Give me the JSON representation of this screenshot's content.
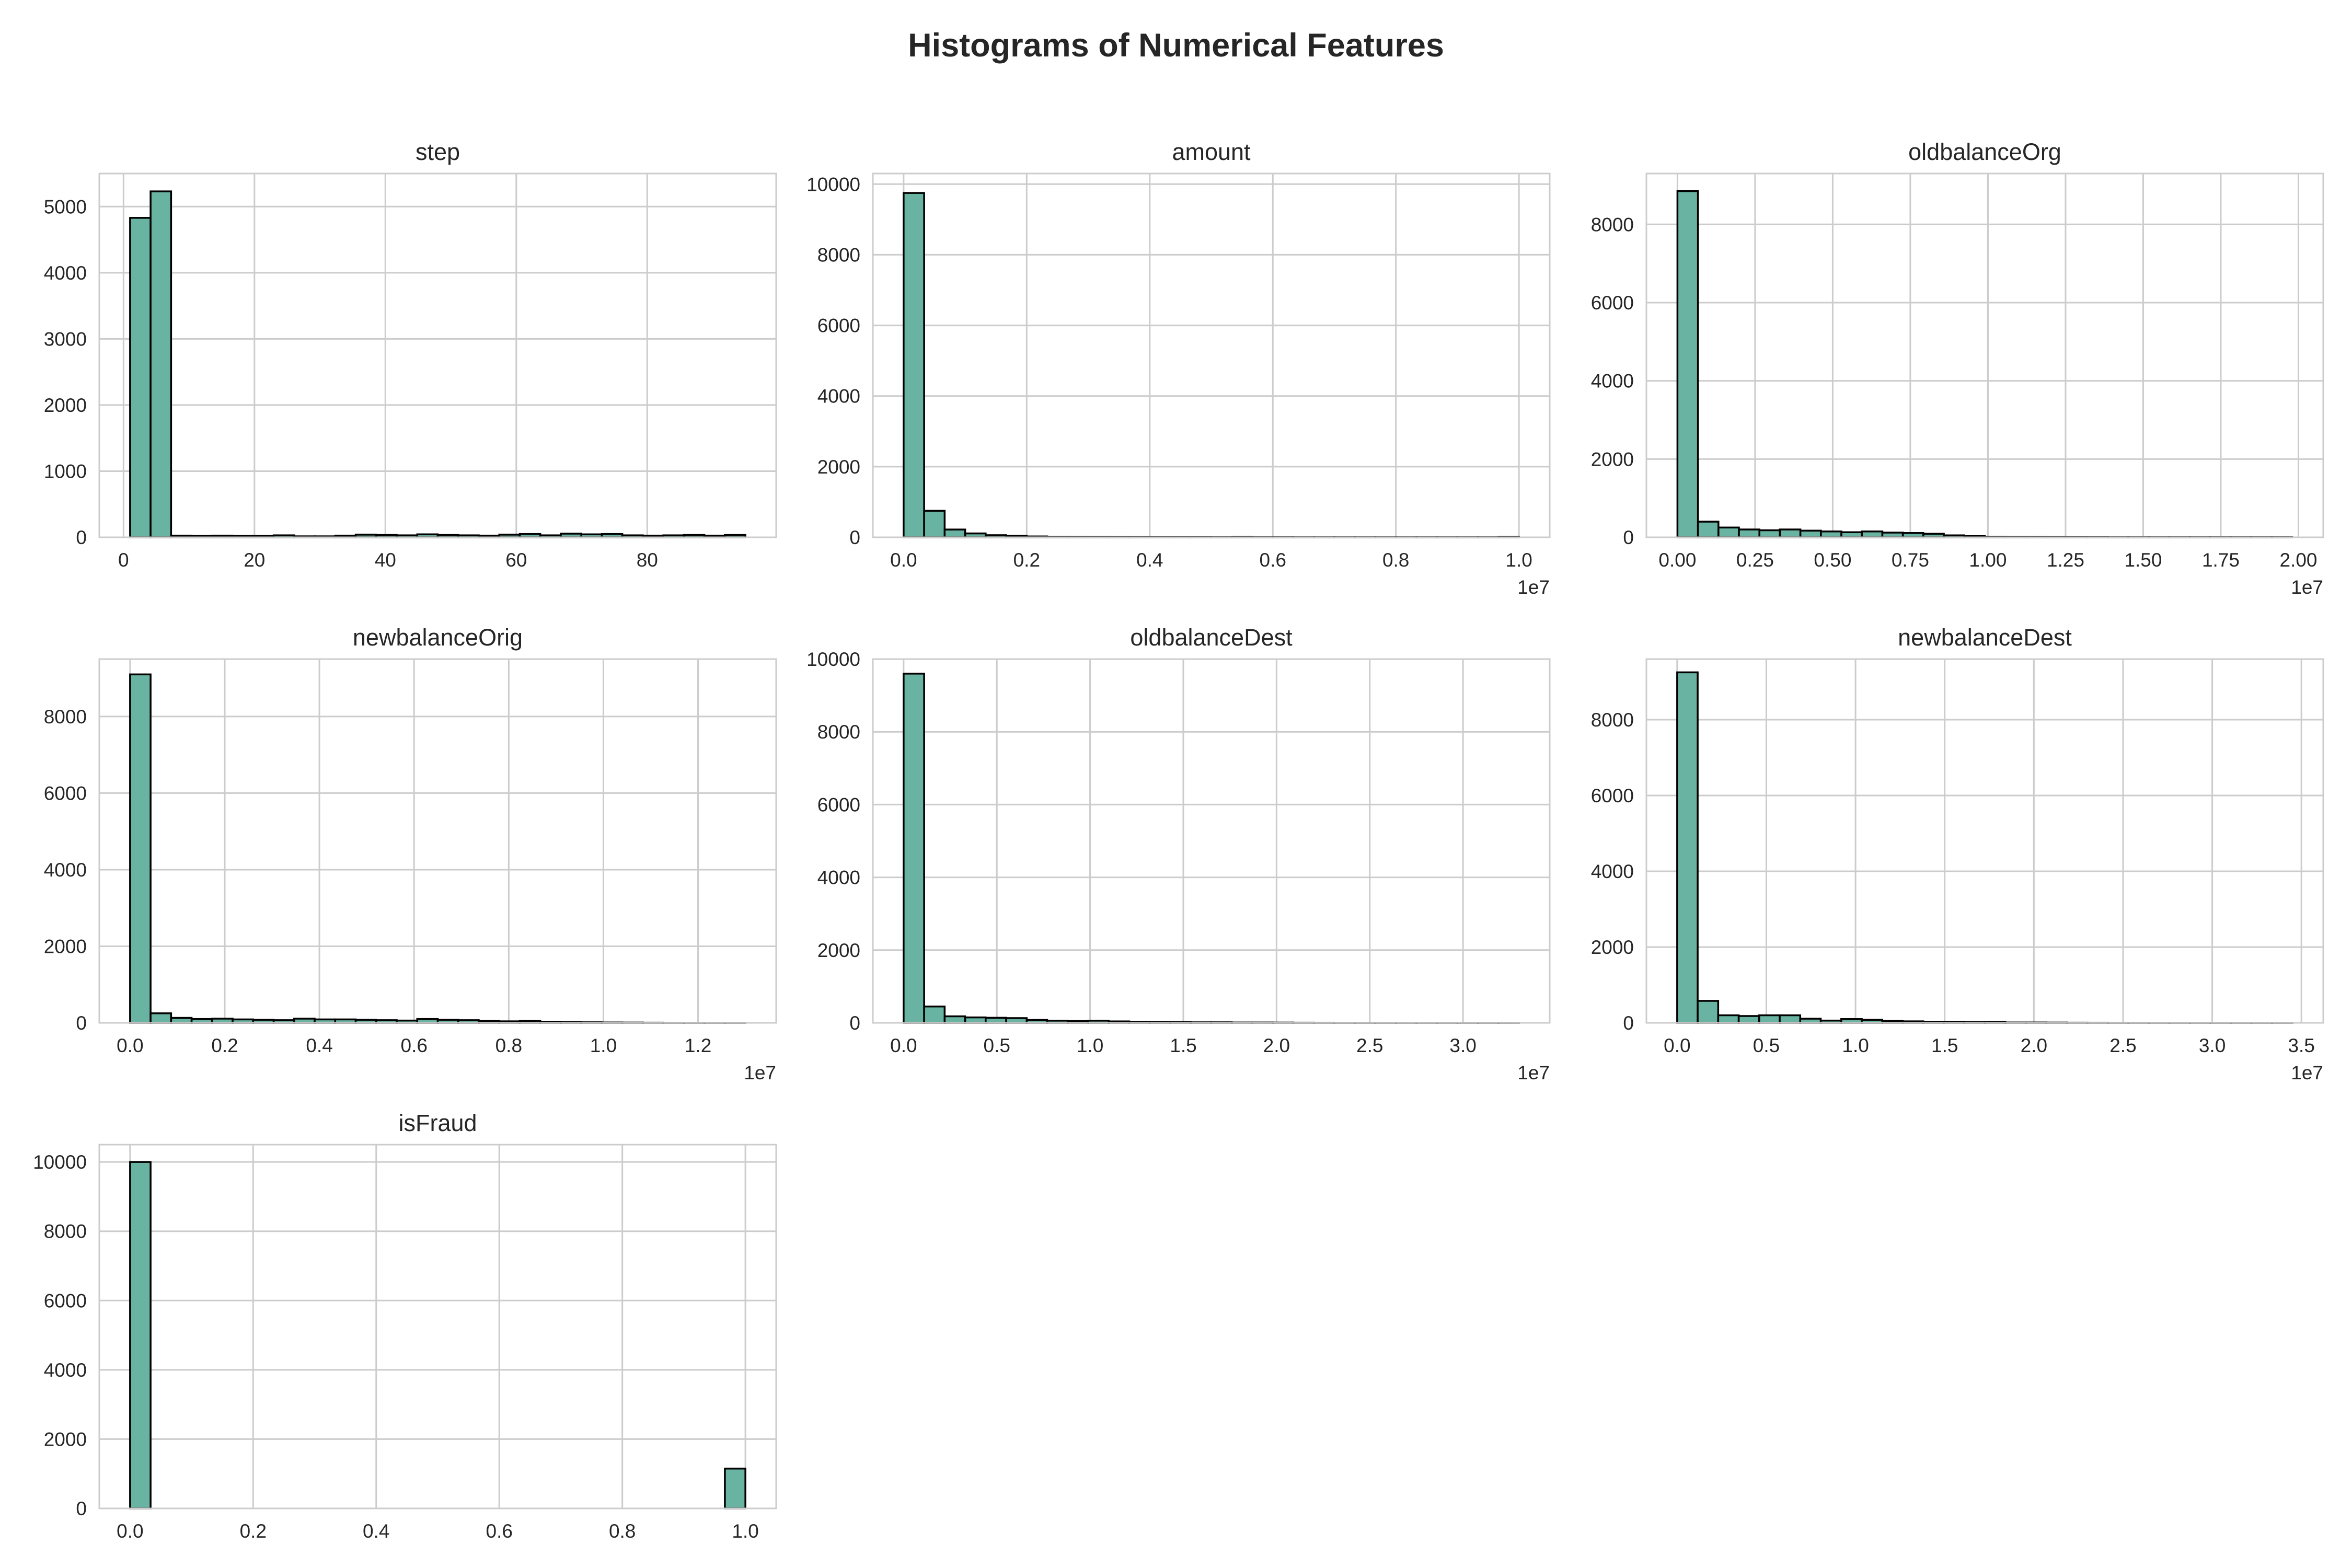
{
  "figure": {
    "title": "Histograms of Numerical Features",
    "bar_color": "#69b3a2",
    "edge_color": "#000000",
    "grid": true,
    "bins_per_panel": 30
  },
  "chart_data": [
    {
      "type": "bar",
      "title": "step",
      "xlabel": "",
      "ylabel": "",
      "bin_range": [
        1,
        95
      ],
      "xlim": [
        -3.7,
        99.7
      ],
      "ylim": [
        0,
        5500
      ],
      "xticks": [
        0,
        20,
        40,
        60,
        80
      ],
      "xtick_labels": [
        "0",
        "20",
        "40",
        "60",
        "80"
      ],
      "x_offset_label": "",
      "yticks": [
        0,
        1000,
        2000,
        3000,
        4000,
        5000
      ],
      "ytick_labels": [
        "0",
        "1000",
        "2000",
        "3000",
        "4000",
        "5000"
      ],
      "values": [
        4830,
        5230,
        25,
        20,
        25,
        20,
        20,
        30,
        15,
        15,
        25,
        40,
        35,
        30,
        45,
        35,
        30,
        25,
        40,
        50,
        30,
        55,
        45,
        50,
        30,
        25,
        30,
        35,
        25,
        35
      ]
    },
    {
      "type": "bar",
      "title": "amount",
      "xlabel": "",
      "ylabel": "",
      "bin_range": [
        0,
        10000000
      ],
      "xlim": [
        -500000,
        10500000
      ],
      "ylim": [
        0,
        10300
      ],
      "xticks": [
        0,
        2000000,
        4000000,
        6000000,
        8000000,
        10000000
      ],
      "xtick_labels": [
        "0.0",
        "0.2",
        "0.4",
        "0.6",
        "0.8",
        "1.0"
      ],
      "x_offset_label": "1e7",
      "yticks": [
        0,
        2000,
        4000,
        6000,
        8000,
        10000
      ],
      "ytick_labels": [
        "0",
        "2000",
        "4000",
        "6000",
        "8000",
        "10000"
      ],
      "values": [
        9750,
        750,
        220,
        110,
        60,
        40,
        25,
        15,
        12,
        10,
        8,
        6,
        5,
        4,
        4,
        3,
        12,
        3,
        3,
        2,
        2,
        2,
        2,
        2,
        2,
        2,
        2,
        2,
        2,
        12
      ]
    },
    {
      "type": "bar",
      "title": "oldbalanceOrg",
      "xlabel": "",
      "ylabel": "",
      "bin_range": [
        0,
        19800000
      ],
      "xlim": [
        -1000000,
        20800000
      ],
      "ylim": [
        0,
        9300
      ],
      "xticks": [
        0,
        2500000,
        5000000,
        7500000,
        10000000,
        12500000,
        15000000,
        17500000,
        20000000
      ],
      "xtick_labels": [
        "0.00",
        "0.25",
        "0.50",
        "0.75",
        "1.00",
        "1.25",
        "1.50",
        "1.75",
        "2.00"
      ],
      "x_offset_label": "1e7",
      "yticks": [
        0,
        2000,
        4000,
        6000,
        8000
      ],
      "ytick_labels": [
        "0",
        "2000",
        "4000",
        "6000",
        "8000"
      ],
      "values": [
        8850,
        400,
        250,
        200,
        180,
        200,
        170,
        150,
        130,
        150,
        120,
        110,
        90,
        50,
        30,
        15,
        10,
        8,
        6,
        4,
        3,
        2,
        2,
        2,
        2,
        2,
        2,
        2,
        2,
        2
      ]
    },
    {
      "type": "bar",
      "title": "newbalanceOrig",
      "xlabel": "",
      "ylabel": "",
      "bin_range": [
        0,
        13000000
      ],
      "xlim": [
        -650000,
        13650000
      ],
      "ylim": [
        0,
        9500
      ],
      "xticks": [
        0,
        2000000,
        4000000,
        6000000,
        8000000,
        10000000,
        12000000
      ],
      "xtick_labels": [
        "0.0",
        "0.2",
        "0.4",
        "0.6",
        "0.8",
        "1.0",
        "1.2"
      ],
      "x_offset_label": "1e7",
      "yticks": [
        0,
        2000,
        4000,
        6000,
        8000
      ],
      "ytick_labels": [
        "0",
        "2000",
        "4000",
        "6000",
        "8000"
      ],
      "values": [
        9100,
        250,
        130,
        100,
        110,
        90,
        80,
        70,
        110,
        90,
        90,
        80,
        70,
        60,
        100,
        80,
        70,
        50,
        40,
        50,
        30,
        20,
        15,
        10,
        8,
        5,
        3,
        2,
        2,
        2
      ]
    },
    {
      "type": "bar",
      "title": "oldbalanceDest",
      "xlabel": "",
      "ylabel": "",
      "bin_range": [
        0,
        33000000
      ],
      "xlim": [
        -1650000,
        34650000
      ],
      "ylim": [
        0,
        10000
      ],
      "xticks": [
        0,
        5000000,
        10000000,
        15000000,
        20000000,
        25000000,
        30000000
      ],
      "xtick_labels": [
        "0.0",
        "0.5",
        "1.0",
        "1.5",
        "2.0",
        "2.5",
        "3.0"
      ],
      "x_offset_label": "1e7",
      "yticks": [
        0,
        2000,
        4000,
        6000,
        8000,
        10000
      ],
      "ytick_labels": [
        "0",
        "2000",
        "4000",
        "6000",
        "8000",
        "10000"
      ],
      "values": [
        9600,
        450,
        180,
        150,
        140,
        130,
        80,
        60,
        50,
        60,
        40,
        30,
        25,
        20,
        15,
        15,
        10,
        10,
        8,
        5,
        4,
        3,
        3,
        2,
        2,
        2,
        2,
        2,
        2,
        2
      ]
    },
    {
      "type": "bar",
      "title": "newbalanceDest",
      "xlabel": "",
      "ylabel": "",
      "bin_range": [
        0,
        34500000
      ],
      "xlim": [
        -1725000,
        36225000
      ],
      "ylim": [
        0,
        9600
      ],
      "xticks": [
        0,
        5000000,
        10000000,
        15000000,
        20000000,
        25000000,
        30000000,
        35000000
      ],
      "xtick_labels": [
        "0.0",
        "0.5",
        "1.0",
        "1.5",
        "2.0",
        "2.5",
        "3.0",
        "3.5"
      ],
      "x_offset_label": "1e7",
      "yticks": [
        0,
        2000,
        4000,
        6000,
        8000
      ],
      "ytick_labels": [
        "0",
        "2000",
        "4000",
        "6000",
        "8000"
      ],
      "values": [
        9250,
        580,
        200,
        180,
        200,
        200,
        110,
        60,
        100,
        80,
        50,
        40,
        30,
        30,
        20,
        25,
        10,
        10,
        8,
        5,
        4,
        3,
        3,
        2,
        2,
        2,
        2,
        2,
        2,
        2
      ]
    },
    {
      "type": "bar",
      "title": "isFraud",
      "xlabel": "",
      "ylabel": "",
      "bin_range": [
        0,
        1
      ],
      "xlim": [
        -0.05,
        1.05
      ],
      "ylim": [
        0,
        10500
      ],
      "xticks": [
        0,
        0.2,
        0.4,
        0.6,
        0.8,
        1.0
      ],
      "xtick_labels": [
        "0.0",
        "0.2",
        "0.4",
        "0.6",
        "0.8",
        "1.0"
      ],
      "x_offset_label": "",
      "yticks": [
        0,
        2000,
        4000,
        6000,
        8000,
        10000
      ],
      "ytick_labels": [
        "0",
        "2000",
        "4000",
        "6000",
        "8000",
        "10000"
      ],
      "values": [
        10000,
        0,
        0,
        0,
        0,
        0,
        0,
        0,
        0,
        0,
        0,
        0,
        0,
        0,
        0,
        0,
        0,
        0,
        0,
        0,
        0,
        0,
        0,
        0,
        0,
        0,
        0,
        0,
        0,
        1150
      ]
    }
  ]
}
